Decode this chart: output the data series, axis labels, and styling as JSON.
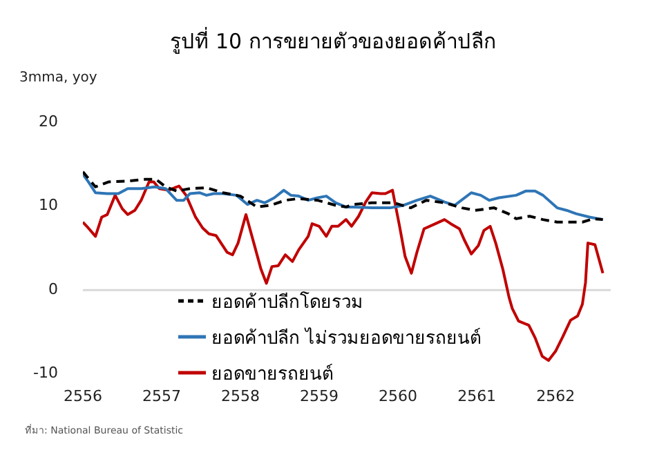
{
  "chart_data": {
    "type": "line",
    "title": "รูปที่ 10 การขยายตัวของยอดค้าปลีก",
    "ylabel": "3mma, yoy",
    "annotations": [
      "ที่มา: National Bureau of Statistic"
    ],
    "xlim": [
      2556,
      2562.7
    ],
    "xticks": [
      2556,
      2557,
      2558,
      2559,
      2560,
      2561,
      2562
    ],
    "ylim": [
      -10,
      20
    ],
    "yticks": [
      -10,
      0,
      10,
      20
    ],
    "grid": false,
    "legend": "bottom left",
    "marker": "none",
    "ref_lines": [
      {
        "axis": "y",
        "value": 0,
        "color": "#d9d9d9"
      }
    ],
    "series": [
      {
        "name": "ยอดค้าปลีกโดยรวม",
        "color": "#000000",
        "line_style": "dashed",
        "x": [
          2556.0,
          2556.16,
          2556.33,
          2556.57,
          2556.79,
          2556.93,
          2557.05,
          2557.19,
          2557.36,
          2557.57,
          2557.78,
          2558.0,
          2558.21,
          2558.38,
          2558.57,
          2558.74,
          2558.98,
          2559.21,
          2559.34,
          2559.43,
          2559.67,
          2559.95,
          2560.16,
          2560.36,
          2560.59,
          2560.81,
          2560.98,
          2561.22,
          2561.4,
          2561.5,
          2561.67,
          2561.84,
          2562.02,
          2562.19,
          2562.34,
          2562.48,
          2562.6
        ],
        "values": [
          14.1,
          12.3,
          12.9,
          13.0,
          13.2,
          13.2,
          12.3,
          11.8,
          12.1,
          12.2,
          11.6,
          11.2,
          9.9,
          10.1,
          10.7,
          10.9,
          10.7,
          10.1,
          9.9,
          10.2,
          10.4,
          10.4,
          9.8,
          10.7,
          10.4,
          9.8,
          9.5,
          9.8,
          9.1,
          8.5,
          8.8,
          8.4,
          8.1,
          8.1,
          8.1,
          8.5,
          8.4
        ]
      },
      {
        "name": "ยอดค้าปลีก ไม่รวมยอดขายรถยนต์",
        "color": "#2e75b6",
        "line_style": "solid",
        "x": [
          2556.0,
          2556.07,
          2556.16,
          2556.31,
          2556.45,
          2556.57,
          2556.74,
          2556.91,
          2557.05,
          2557.19,
          2557.28,
          2557.36,
          2557.48,
          2557.57,
          2557.66,
          2557.78,
          2557.95,
          2558.09,
          2558.21,
          2558.31,
          2558.43,
          2558.55,
          2558.64,
          2558.74,
          2558.86,
          2558.98,
          2559.09,
          2559.21,
          2559.34,
          2559.43,
          2559.67,
          2559.9,
          2560.07,
          2560.24,
          2560.41,
          2560.59,
          2560.72,
          2560.93,
          2561.05,
          2561.16,
          2561.28,
          2561.5,
          2561.62,
          2561.74,
          2561.84,
          2562.02,
          2562.14,
          2562.26,
          2562.43,
          2562.6
        ],
        "values": [
          13.8,
          12.9,
          11.6,
          11.5,
          11.5,
          12.1,
          12.1,
          12.3,
          12.1,
          10.7,
          10.7,
          11.5,
          11.6,
          11.3,
          11.5,
          11.5,
          11.3,
          10.2,
          10.7,
          10.4,
          11.0,
          11.9,
          11.3,
          11.2,
          10.7,
          11.0,
          11.2,
          10.4,
          9.9,
          9.9,
          9.8,
          9.8,
          10.1,
          10.7,
          11.2,
          10.5,
          10.1,
          11.6,
          11.3,
          10.7,
          11.0,
          11.3,
          11.8,
          11.8,
          11.3,
          9.8,
          9.5,
          9.1,
          8.7,
          8.4
        ]
      },
      {
        "name": "ยอดขายรถยนต์",
        "color": "#c00000",
        "line_style": "solid",
        "x": [
          2556.0,
          2556.05,
          2556.16,
          2556.24,
          2556.31,
          2556.41,
          2556.5,
          2556.57,
          2556.66,
          2556.74,
          2556.84,
          2556.9,
          2556.97,
          2557.09,
          2557.22,
          2557.31,
          2557.43,
          2557.52,
          2557.6,
          2557.69,
          2557.83,
          2557.9,
          2557.97,
          2558.07,
          2558.17,
          2558.26,
          2558.33,
          2558.4,
          2558.48,
          2558.57,
          2558.66,
          2558.74,
          2558.86,
          2558.91,
          2559.0,
          2559.09,
          2559.16,
          2559.24,
          2559.34,
          2559.41,
          2559.5,
          2559.59,
          2559.67,
          2559.78,
          2559.84,
          2559.93,
          2560.02,
          2560.09,
          2560.17,
          2560.24,
          2560.33,
          2560.45,
          2560.59,
          2560.67,
          2560.78,
          2560.84,
          2560.93,
          2561.02,
          2561.09,
          2561.17,
          2561.24,
          2561.33,
          2561.41,
          2561.45,
          2561.53,
          2561.66,
          2561.74,
          2561.83,
          2561.91,
          2562.0,
          2562.09,
          2562.19,
          2562.28,
          2562.34,
          2562.38,
          2562.41,
          2562.5,
          2562.6
        ],
        "values": [
          8.1,
          7.6,
          6.4,
          8.7,
          9.0,
          11.3,
          9.7,
          9.0,
          9.5,
          10.7,
          12.9,
          12.9,
          12.1,
          11.9,
          12.4,
          11.3,
          8.7,
          7.4,
          6.7,
          6.5,
          4.5,
          4.2,
          5.6,
          9.0,
          5.6,
          2.5,
          0.8,
          2.8,
          2.9,
          4.2,
          3.4,
          4.8,
          6.4,
          7.9,
          7.6,
          6.4,
          7.6,
          7.6,
          8.4,
          7.6,
          8.8,
          10.5,
          11.6,
          11.5,
          11.5,
          11.9,
          7.6,
          4.0,
          2.0,
          4.5,
          7.3,
          7.8,
          8.4,
          7.9,
          7.3,
          6.0,
          4.3,
          5.3,
          7.1,
          7.6,
          5.6,
          2.5,
          -0.9,
          -2.2,
          -3.7,
          -4.2,
          -5.7,
          -7.9,
          -8.4,
          -7.3,
          -5.6,
          -3.6,
          -3.1,
          -1.7,
          0.9,
          5.6,
          5.4,
          2.0
        ]
      }
    ]
  }
}
